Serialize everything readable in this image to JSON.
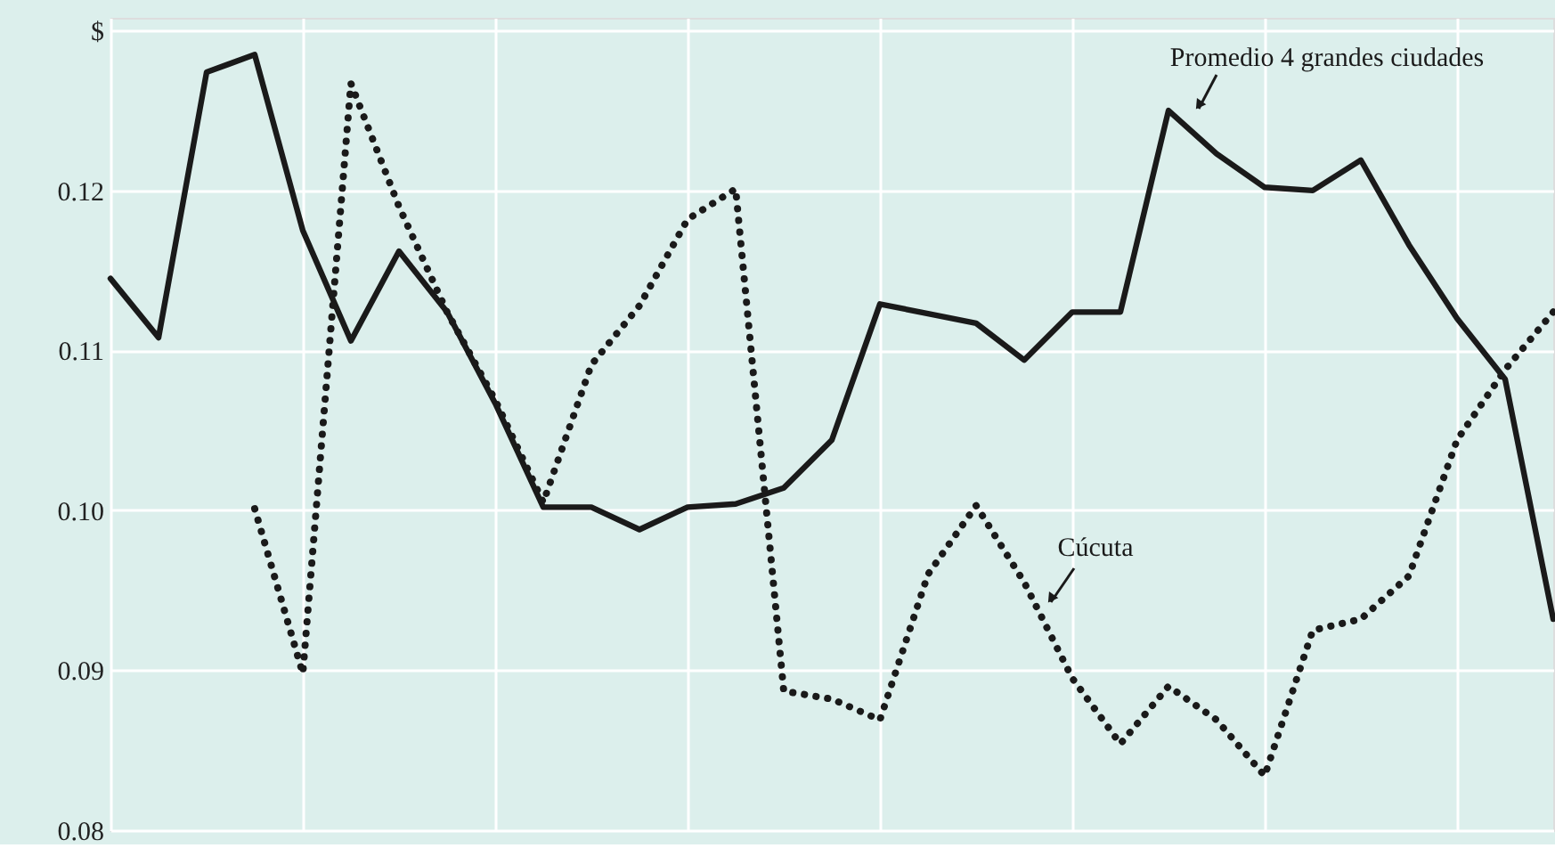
{
  "chart_data": {
    "type": "line",
    "categories": [
      null,
      null,
      null,
      null,
      null,
      null,
      null,
      null,
      null,
      null,
      null,
      null,
      null,
      null,
      null,
      null,
      null,
      null,
      null,
      null,
      null,
      null,
      null,
      null,
      null,
      null,
      null,
      null,
      null,
      null,
      null
    ],
    "ylim": [
      0.08,
      0.1308
    ],
    "yticks": [
      0.08,
      0.09,
      {
        "value": 0.1,
        "label": "0.10"
      },
      0.11,
      0.12,
      {
        "value": 0.13,
        "label": "$"
      }
    ],
    "tick_labels": "y",
    "grid": true,
    "legend": false,
    "marker": "none",
    "series": [
      {
        "name": "Promedio 4 grandes ciudades",
        "color": "#1a1a1a",
        "line_style": "solid",
        "values": [
          0.1145,
          0.1108,
          0.1274,
          0.1285,
          0.1175,
          0.1106,
          0.1162,
          0.1124,
          0.1067,
          0.1002,
          0.1002,
          0.0988,
          0.1002,
          0.1004,
          0.1014,
          0.1044,
          0.1129,
          0.1123,
          0.1117,
          0.1094,
          0.1124,
          0.1124,
          0.125,
          0.1223,
          0.1202,
          0.12,
          0.1219,
          0.1166,
          0.112,
          0.1082,
          0.0932
        ]
      },
      {
        "name": "Cúcuta",
        "color": "#1a1a1a",
        "line_style": "dotted",
        "values": [
          null,
          null,
          null,
          0.1001,
          0.0898,
          0.1267,
          0.119,
          0.1124,
          0.1069,
          0.1005,
          0.1091,
          0.1128,
          0.1182,
          0.1201,
          0.0887,
          0.0882,
          0.0869,
          0.096,
          0.1003,
          0.0955,
          0.0895,
          0.0854,
          0.089,
          0.0869,
          0.0834,
          0.0925,
          0.0932,
          0.0959,
          0.1044,
          0.1088,
          0.1124
        ]
      }
    ]
  }
}
